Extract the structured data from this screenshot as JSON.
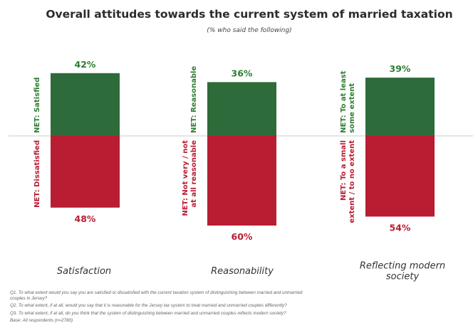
{
  "colors": {
    "positive": "#2e6b3a",
    "negative": "#b81d32",
    "positive_text": "#2e7d32",
    "negative_text": "#b81d32",
    "axis": "#c8c8c8"
  },
  "chart_data": {
    "type": "bar",
    "title": "Overall attitudes towards the current system of married taxation",
    "subtitle": "(% who said the following)",
    "categories": [
      {
        "lines": [
          "Satisfaction"
        ]
      },
      {
        "lines": [
          "Reasonability"
        ]
      },
      {
        "lines": [
          "Reflecting modern",
          "society"
        ]
      }
    ],
    "series": [
      {
        "name": "positive",
        "values": [
          42,
          36,
          39
        ],
        "value_labels": [
          "42%",
          "36%",
          "39%"
        ]
      },
      {
        "name": "negative",
        "values": [
          48,
          60,
          54
        ],
        "value_labels": [
          "48%",
          "60%",
          "54%"
        ]
      }
    ],
    "positive_labels": [
      [
        "NET: Satisfied"
      ],
      [
        "NET: Reasonable"
      ],
      [
        "NET: To at least",
        "some extent"
      ]
    ],
    "negative_labels": [
      [
        "NET: Dissatisfied"
      ],
      [
        "NET: Not very / not",
        "at all reasonable"
      ],
      [
        "NET: To a small",
        "extent / to no extent"
      ]
    ],
    "axis": {
      "baseline": 0,
      "ylim": [
        -60,
        42
      ]
    },
    "legend": "none",
    "grid": false
  },
  "footnotes": [
    "Q1. To what extent would you say you are satisfied or dissatisfied with the current taxation system of distinguishing between married and unmarried",
    "couples in Jersey?",
    "Q2. To what extent, if at all, would you say that it is reasonable for the Jersey tax system to treat married and unmarried couples differently?",
    "Q3. To what extent, if at all, do you think that the system of distinguishing between married and unmarried couples reflects modern society?",
    "Base: All respondents (n=2780)"
  ]
}
